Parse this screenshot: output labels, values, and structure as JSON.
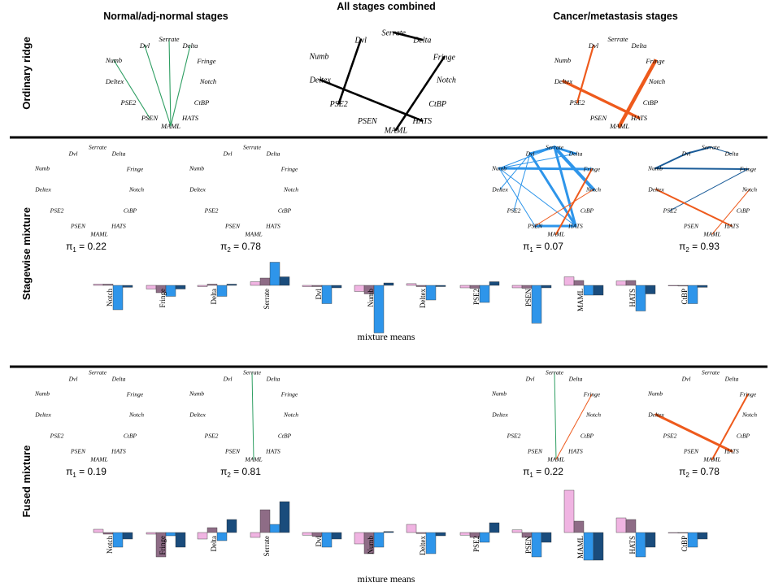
{
  "titles": {
    "left": "Normal/adj-normal stages",
    "center": "All stages combined",
    "right": "Cancer/metastasis stages"
  },
  "row_labels": {
    "ridge": "Ordinary ridge",
    "stagewise": "Stagewise mixture",
    "fused": "Fused mixture"
  },
  "genes": [
    "Serrate",
    "Delta",
    "Fringe",
    "Notch",
    "CtBP",
    "HATS",
    "MAML",
    "PSEN",
    "PSE2",
    "Deltex",
    "Numb",
    "Dvl"
  ],
  "colors": {
    "green": "#2e9e62",
    "black": "#000000",
    "orange": "#ee5a1c",
    "light_blue": "#2e95ea",
    "dark_blue": "#1a5c99",
    "pink": "#f0b4e2",
    "mauve": "#8e6c86",
    "bar_blue": "#2e95ea",
    "bar_navy": "#1a4c7c"
  },
  "mixture_means_label": "mixture means",
  "bar_categories": [
    "Notch",
    "Fringe",
    "Delta",
    "Serrate",
    "Dvl",
    "Numb",
    "Deltex",
    "PSE2",
    "PSEN",
    "MAML",
    "HATS",
    "CtBP"
  ],
  "networks": {
    "ridge_normal": {
      "edges": [
        {
          "a": "MAML",
          "b": "Dvl",
          "color": "green",
          "w": 1
        },
        {
          "a": "MAML",
          "b": "Serrate",
          "color": "green",
          "w": 1
        },
        {
          "a": "MAML",
          "b": "Delta",
          "color": "green",
          "w": 1
        },
        {
          "a": "PSEN",
          "b": "Numb",
          "color": "green",
          "w": 1
        }
      ]
    },
    "ridge_all": {
      "edges": [
        {
          "a": "Serrate",
          "b": "Delta",
          "color": "black",
          "w": 2
        },
        {
          "a": "Dvl",
          "b": "PSE2",
          "color": "black",
          "w": 2
        },
        {
          "a": "Deltex",
          "b": "HATS",
          "color": "black",
          "w": 2
        },
        {
          "a": "MAML",
          "b": "Fringe",
          "color": "black",
          "w": 2
        }
      ]
    },
    "ridge_cancer": {
      "edges": [
        {
          "a": "PSE2",
          "b": "Dvl",
          "color": "orange",
          "w": 2
        },
        {
          "a": "MAML",
          "b": "Fringe",
          "color": "orange",
          "w": 4
        },
        {
          "a": "Deltex",
          "b": "HATS",
          "color": "orange",
          "w": 3
        }
      ]
    },
    "sw_normal_1": {
      "pi_label": "π",
      "pi_sub": "1",
      "pi_value": "= 0.22",
      "edges": []
    },
    "sw_normal_2": {
      "pi_label": "π",
      "pi_sub": "2",
      "pi_value": "= 0.78",
      "edges": []
    },
    "sw_cancer_1": {
      "pi_label": "π",
      "pi_sub": "1",
      "pi_value": "= 0.07",
      "edges": [
        {
          "a": "Dvl",
          "b": "Serrate",
          "color": "light_blue",
          "w": 3
        },
        {
          "a": "Serrate",
          "b": "Delta",
          "color": "light_blue",
          "w": 3
        },
        {
          "a": "Numb",
          "b": "Fringe",
          "color": "light_blue",
          "w": 3
        },
        {
          "a": "Dvl",
          "b": "HATS",
          "color": "light_blue",
          "w": 3
        },
        {
          "a": "Serrate",
          "b": "HATS",
          "color": "light_blue",
          "w": 3
        },
        {
          "a": "Serrate",
          "b": "Notch",
          "color": "light_blue",
          "w": 4
        },
        {
          "a": "Numb",
          "b": "Delta",
          "color": "light_blue",
          "w": 1
        },
        {
          "a": "Numb",
          "b": "PSEN",
          "color": "light_blue",
          "w": 1
        },
        {
          "a": "Numb",
          "b": "HATS",
          "color": "light_blue",
          "w": 1
        },
        {
          "a": "Deltex",
          "b": "Dvl",
          "color": "light_blue",
          "w": 1
        },
        {
          "a": "PSE2",
          "b": "Dvl",
          "color": "light_blue",
          "w": 1
        },
        {
          "a": "Numb",
          "b": "Serrate",
          "color": "light_blue",
          "w": 1
        },
        {
          "a": "PSEN",
          "b": "HATS",
          "color": "light_blue",
          "w": 3
        },
        {
          "a": "MAML",
          "b": "Fringe",
          "color": "orange",
          "w": 2
        },
        {
          "a": "PSEN",
          "b": "Notch",
          "color": "orange",
          "w": 1
        }
      ]
    },
    "sw_cancer_2": {
      "pi_label": "π",
      "pi_sub": "2",
      "pi_value": "= 0.93",
      "edges": [
        {
          "a": "Dvl",
          "b": "Serrate",
          "color": "dark_blue",
          "w": 2
        },
        {
          "a": "Serrate",
          "b": "Delta",
          "color": "dark_blue",
          "w": 1
        },
        {
          "a": "Numb",
          "b": "Dvl",
          "color": "dark_blue",
          "w": 2
        },
        {
          "a": "Numb",
          "b": "Fringe",
          "color": "dark_blue",
          "w": 2
        },
        {
          "a": "PSE2",
          "b": "Fringe",
          "color": "dark_blue",
          "w": 1
        },
        {
          "a": "Deltex",
          "b": "HATS",
          "color": "orange",
          "w": 2
        },
        {
          "a": "MAML",
          "b": "Notch",
          "color": "orange",
          "w": 1
        }
      ]
    },
    "fu_normal_1": {
      "pi_label": "π",
      "pi_sub": "1",
      "pi_value": "= 0.19",
      "edges": []
    },
    "fu_normal_2": {
      "pi_label": "π",
      "pi_sub": "2",
      "pi_value": "= 0.81",
      "edges": [
        {
          "a": "MAML",
          "b": "Serrate",
          "color": "green",
          "w": 1
        }
      ]
    },
    "fu_cancer_1": {
      "pi_label": "π",
      "pi_sub": "1",
      "pi_value": "= 0.22",
      "edges": [
        {
          "a": "MAML",
          "b": "Serrate",
          "color": "green",
          "w": 1
        },
        {
          "a": "MAML",
          "b": "Fringe",
          "color": "orange",
          "w": 1
        }
      ]
    },
    "fu_cancer_2": {
      "pi_label": "π",
      "pi_sub": "2",
      "pi_value": "= 0.78",
      "edges": [
        {
          "a": "MAML",
          "b": "Fringe",
          "color": "orange",
          "w": 2
        },
        {
          "a": "Deltex",
          "b": "HATS",
          "color": "orange",
          "w": 3
        }
      ]
    }
  },
  "chart_data": [
    {
      "type": "bar",
      "title": "",
      "xlabel": "mixture means",
      "categories": [
        "Notch",
        "Fringe",
        "Delta",
        "Serrate",
        "Dvl",
        "Numb",
        "Deltex",
        "PSE2",
        "PSEN",
        "MAML",
        "HATS",
        "CtBP"
      ],
      "series_colors": [
        "pink",
        "mauve",
        "bar_blue",
        "bar_navy"
      ],
      "values": [
        [
          0.05,
          0.05,
          -1.0,
          -0.08
        ],
        [
          -0.15,
          -0.3,
          -0.45,
          -0.15
        ],
        [
          -0.05,
          0.05,
          -0.45,
          0.05
        ],
        [
          0.15,
          0.3,
          0.95,
          0.35
        ],
        [
          -0.05,
          -0.05,
          -0.75,
          -0.1
        ],
        [
          -0.25,
          -0.35,
          -1.95,
          0.1
        ],
        [
          0.07,
          -0.05,
          -0.6,
          -0.05
        ],
        [
          -0.1,
          -0.12,
          -0.7,
          0.15
        ],
        [
          -0.1,
          -0.12,
          -1.55,
          -0.1
        ],
        [
          0.35,
          0.2,
          -0.4,
          -0.4
        ],
        [
          0.18,
          0.2,
          -1.05,
          -0.35
        ],
        [
          0.0,
          -0.03,
          -0.75,
          -0.08
        ]
      ]
    },
    {
      "type": "bar",
      "title": "",
      "xlabel": "mixture means",
      "categories": [
        "Notch",
        "Fringe",
        "Delta",
        "Serrate",
        "Dvl",
        "Numb",
        "Deltex",
        "PSE2",
        "PSEN",
        "MAML",
        "HATS",
        "CtBP"
      ],
      "series_colors": [
        "pink",
        "mauve",
        "bar_blue",
        "bar_navy"
      ],
      "values": [
        [
          0.1,
          -0.05,
          -0.45,
          -0.2
        ],
        [
          -0.05,
          -0.75,
          -0.1,
          -0.45
        ],
        [
          -0.2,
          0.15,
          -0.25,
          0.4
        ],
        [
          -0.15,
          0.7,
          0.25,
          0.95
        ],
        [
          -0.08,
          -0.12,
          -0.45,
          -0.2
        ],
        [
          -0.35,
          -0.65,
          -0.45,
          0.03
        ],
        [
          0.25,
          -0.03,
          -0.65,
          -0.1
        ],
        [
          -0.08,
          -0.15,
          -0.3,
          0.3
        ],
        [
          0.08,
          -0.15,
          -0.75,
          -0.3
        ],
        [
          1.3,
          0.35,
          -0.85,
          -0.85
        ],
        [
          0.45,
          0.4,
          -0.75,
          -0.45
        ],
        [
          0.0,
          -0.02,
          -0.45,
          -0.2
        ]
      ]
    }
  ]
}
